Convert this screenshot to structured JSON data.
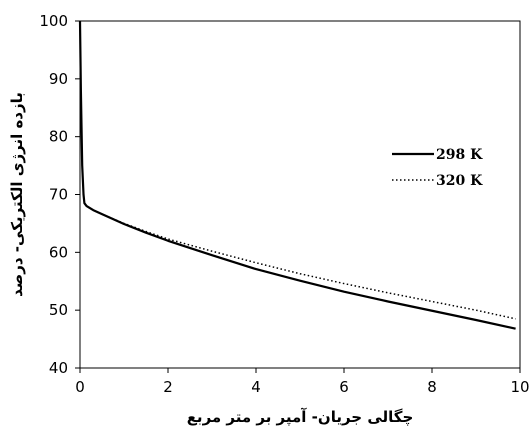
{
  "chart_data": {
    "type": "line",
    "title": "",
    "xlabel": "چگالی جریان- آمپر بر متر مربع",
    "ylabel": "بازده انرژی الکتریکی- درصد",
    "xlim": [
      0,
      10
    ],
    "ylim": [
      40,
      100
    ],
    "xticks": [
      0,
      2,
      4,
      6,
      8,
      10
    ],
    "yticks": [
      40,
      50,
      60,
      70,
      80,
      90,
      100
    ],
    "x_tick_labels": [
      "0",
      "2",
      "4",
      "6",
      "8",
      "10"
    ],
    "y_tick_labels": [
      "40",
      "50",
      "60",
      "70",
      "80",
      "90",
      "100"
    ],
    "grid": false,
    "legend_position": "right",
    "series": [
      {
        "name": "298 K",
        "style": "solid",
        "color": "#000000",
        "x": [
          0,
          0.02,
          0.05,
          0.08,
          0.1,
          0.15,
          0.3,
          0.5,
          1,
          1.5,
          2,
          3,
          4,
          5,
          6,
          7,
          8,
          9,
          9.9
        ],
        "y": [
          100,
          88,
          75,
          70,
          68.5,
          68,
          67.3,
          66.6,
          64.9,
          63.4,
          62.0,
          59.5,
          57.1,
          55.1,
          53.2,
          51.5,
          49.9,
          48.3,
          46.8
        ]
      },
      {
        "name": "320 K",
        "style": "dotted",
        "color": "#000000",
        "x": [
          0.1,
          0.15,
          0.3,
          0.5,
          1,
          1.5,
          2,
          3,
          4,
          5,
          6,
          7,
          8,
          9,
          9.9
        ],
        "y": [
          68.5,
          68,
          67.3,
          66.6,
          65.0,
          63.6,
          62.3,
          60.2,
          58.2,
          56.3,
          54.6,
          53.0,
          51.5,
          50.0,
          48.5
        ]
      }
    ]
  }
}
